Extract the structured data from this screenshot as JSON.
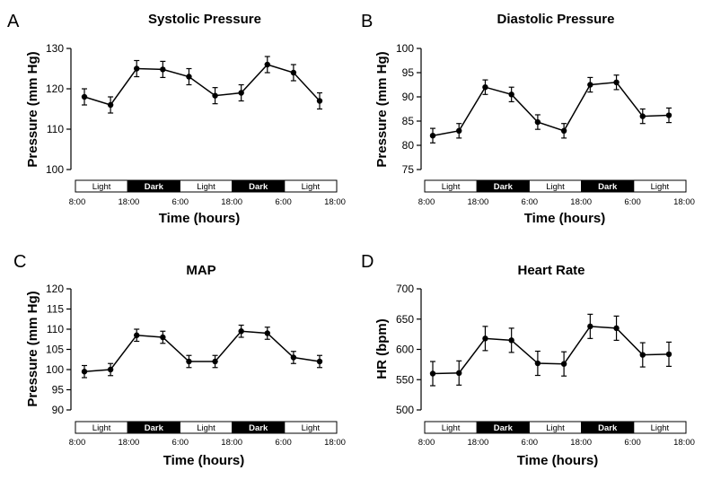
{
  "chart_data": [
    {
      "panel": "A",
      "type": "line",
      "title": "Systolic Pressure",
      "ylabel": "Pressure (mm Hg)",
      "xlabel": "Time (hours)",
      "ylim": [
        100,
        130
      ],
      "yticks": [
        100,
        110,
        120,
        130
      ],
      "x": [
        1,
        2,
        3,
        4,
        5,
        6,
        7,
        8,
        9,
        10
      ],
      "series": [
        {
          "name": "Systolic Pressure",
          "values": [
            118,
            116,
            125,
            124.8,
            123,
            118.3,
            119,
            126,
            124,
            117
          ],
          "errors": [
            2,
            2,
            2,
            2,
            2,
            2,
            2,
            2,
            2,
            2
          ]
        }
      ],
      "xtick_labels": [
        "8:00",
        "18:00",
        "6:00",
        "18:00",
        "6:00",
        "18:00"
      ],
      "bands": [
        {
          "label": "Light",
          "dark": false
        },
        {
          "label": "Dark",
          "dark": true
        },
        {
          "label": "Light",
          "dark": false
        },
        {
          "label": "Dark",
          "dark": true
        },
        {
          "label": "Light",
          "dark": false
        }
      ]
    },
    {
      "panel": "B",
      "type": "line",
      "title": "Diastolic Pressure",
      "ylabel": "Pressure (mm Hg)",
      "xlabel": "Time (hours)",
      "ylim": [
        75,
        100
      ],
      "yticks": [
        75,
        80,
        85,
        90,
        95,
        100
      ],
      "x": [
        1,
        2,
        3,
        4,
        5,
        6,
        7,
        8,
        9,
        10
      ],
      "series": [
        {
          "name": "Diastolic Pressure",
          "values": [
            82,
            83,
            92,
            90.5,
            84.8,
            83,
            92.5,
            93,
            86,
            86.2
          ],
          "errors": [
            1.5,
            1.5,
            1.5,
            1.5,
            1.5,
            1.5,
            1.5,
            1.5,
            1.5,
            1.5
          ]
        }
      ],
      "xtick_labels": [
        "8:00",
        "18:00",
        "6:00",
        "18:00",
        "6:00",
        "18:00"
      ],
      "bands": [
        {
          "label": "Light",
          "dark": false
        },
        {
          "label": "Dark",
          "dark": true
        },
        {
          "label": "Light",
          "dark": false
        },
        {
          "label": "Dark",
          "dark": true
        },
        {
          "label": "Light",
          "dark": false
        }
      ]
    },
    {
      "panel": "C",
      "type": "line",
      "title": "MAP",
      "ylabel": "Pressure (mm Hg)",
      "xlabel": "Time (hours)",
      "ylim": [
        90,
        120
      ],
      "yticks": [
        90,
        95,
        100,
        105,
        110,
        115,
        120
      ],
      "x": [
        1,
        2,
        3,
        4,
        5,
        6,
        7,
        8,
        9,
        10
      ],
      "series": [
        {
          "name": "MAP",
          "values": [
            99.5,
            100,
            108.5,
            108,
            102,
            102,
            109.5,
            109,
            103,
            102
          ],
          "errors": [
            1.5,
            1.5,
            1.5,
            1.5,
            1.5,
            1.5,
            1.5,
            1.5,
            1.5,
            1.5
          ]
        }
      ],
      "xtick_labels": [
        "8:00",
        "18:00",
        "6:00",
        "18:00",
        "6:00",
        "18:00"
      ],
      "bands": [
        {
          "label": "Light",
          "dark": false
        },
        {
          "label": "Dark",
          "dark": true
        },
        {
          "label": "Light",
          "dark": false
        },
        {
          "label": "Dark",
          "dark": true
        },
        {
          "label": "Light",
          "dark": false
        }
      ]
    },
    {
      "panel": "D",
      "type": "line",
      "title": "Heart Rate",
      "ylabel": "HR (bpm)",
      "xlabel": "Time (hours)",
      "ylim": [
        500,
        700
      ],
      "yticks": [
        500,
        550,
        600,
        650,
        700
      ],
      "x": [
        1,
        2,
        3,
        4,
        5,
        6,
        7,
        8,
        9,
        10
      ],
      "series": [
        {
          "name": "Heart Rate",
          "values": [
            560,
            561,
            618,
            615,
            577,
            576,
            638,
            635,
            591,
            592
          ],
          "errors": [
            20,
            20,
            20,
            20,
            20,
            20,
            20,
            20,
            20,
            20
          ]
        }
      ],
      "xtick_labels": [
        "8:00",
        "18:00",
        "6:00",
        "18:00",
        "6:00",
        "18:00"
      ],
      "bands": [
        {
          "label": "Light",
          "dark": false
        },
        {
          "label": "Dark",
          "dark": true
        },
        {
          "label": "Light",
          "dark": false
        },
        {
          "label": "Dark",
          "dark": true
        },
        {
          "label": "Light",
          "dark": false
        }
      ]
    }
  ]
}
